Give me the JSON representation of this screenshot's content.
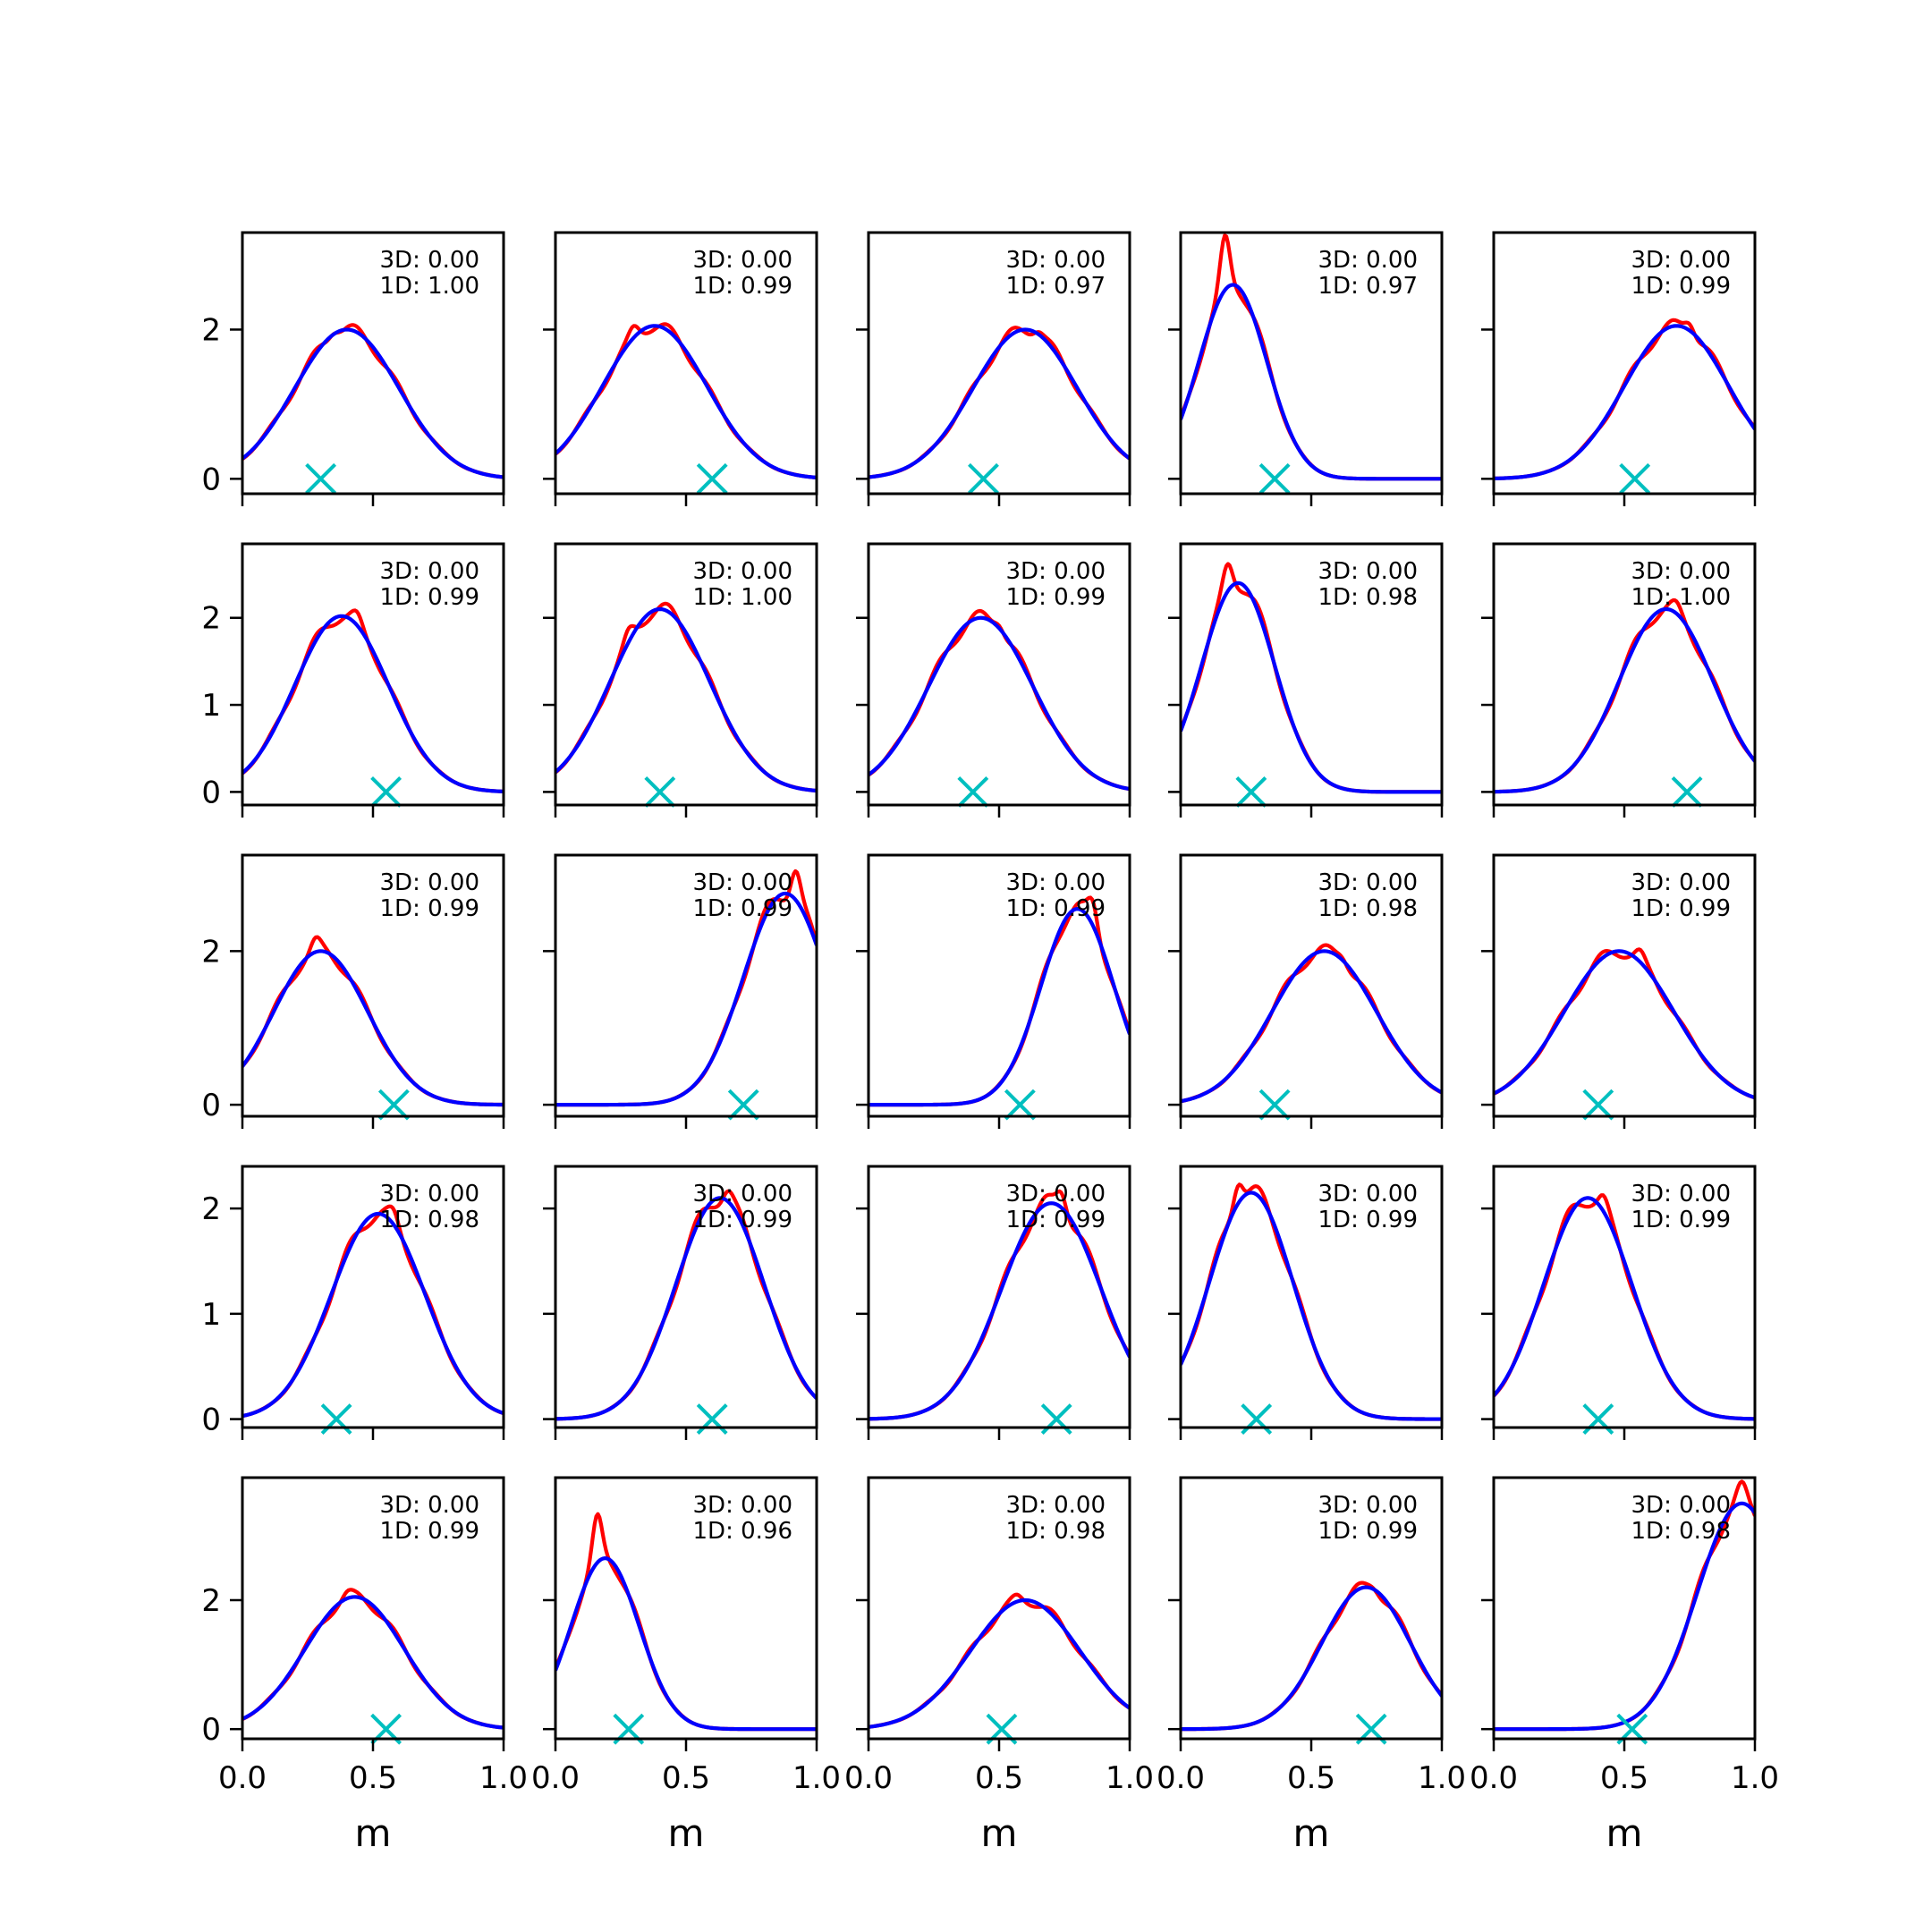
{
  "chart_data": {
    "type": "line",
    "layout": {
      "rows": 5,
      "cols": 5
    },
    "xlabel": "m",
    "xlim": [
      0,
      1
    ],
    "xticks": [
      "0.0",
      "0.5",
      "1.0"
    ],
    "colors": {
      "series_red": "#ff0000",
      "series_blue": "#0000ff",
      "marker": "#00bfbf"
    },
    "row_ylim": [
      [
        -0.2,
        3.3
      ],
      [
        -0.15,
        2.85
      ],
      [
        -0.15,
        3.25
      ],
      [
        -0.08,
        2.4
      ],
      [
        -0.15,
        3.9
      ]
    ],
    "row_yticks": [
      [
        0,
        2
      ],
      [
        0,
        1,
        2
      ],
      [
        0,
        2
      ],
      [
        0,
        1,
        2
      ],
      [
        0,
        2
      ]
    ],
    "row_ytick_labels": [
      [
        "0",
        "2"
      ],
      [
        "0",
        "1",
        "2"
      ],
      [
        "0",
        "2"
      ],
      [
        "0",
        "1",
        "2"
      ],
      [
        "0",
        "2"
      ]
    ],
    "panels": [
      {
        "text3d": "3D: 0.00",
        "text1d": "1D: 1.00",
        "marker_x": 0.3,
        "mu": 0.4,
        "sigma": 0.2,
        "peak": 2.0,
        "bump": 0.08,
        "bump_x": 0.35
      },
      {
        "text3d": "3D: 0.00",
        "text1d": "1D: 0.99",
        "marker_x": 0.6,
        "mu": 0.38,
        "sigma": 0.2,
        "peak": 2.05,
        "bump": 0.12,
        "bump_x": 0.3
      },
      {
        "text3d": "3D: 0.00",
        "text1d": "1D: 0.97",
        "marker_x": 0.44,
        "mu": 0.6,
        "sigma": 0.2,
        "peak": 2.0,
        "bump": 0.08,
        "bump_x": 0.65
      },
      {
        "text3d": "3D: 0.00",
        "text1d": "1D: 0.97",
        "marker_x": 0.36,
        "mu": 0.2,
        "sigma": 0.13,
        "peak": 2.6,
        "bump": 0.65,
        "bump_x": 0.17
      },
      {
        "text3d": "3D: 0.00",
        "text1d": "1D: 0.99",
        "marker_x": 0.54,
        "mu": 0.7,
        "sigma": 0.2,
        "peak": 2.05,
        "bump": 0.15,
        "bump_x": 0.75
      },
      {
        "text3d": "3D: 0.00",
        "text1d": "1D: 0.99",
        "marker_x": 0.55,
        "mu": 0.38,
        "sigma": 0.18,
        "peak": 2.02,
        "bump": 0.08,
        "bump_x": 0.44
      },
      {
        "text3d": "3D: 0.00",
        "text1d": "1D: 1.00",
        "marker_x": 0.4,
        "mu": 0.4,
        "sigma": 0.19,
        "peak": 2.1,
        "bump": 0.1,
        "bump_x": 0.28
      },
      {
        "text3d": "3D: 0.00",
        "text1d": "1D: 0.99",
        "marker_x": 0.4,
        "mu": 0.43,
        "sigma": 0.2,
        "peak": 2.0,
        "bump": 0.1,
        "bump_x": 0.5
      },
      {
        "text3d": "3D: 0.00",
        "text1d": "1D: 0.98",
        "marker_x": 0.27,
        "mu": 0.22,
        "sigma": 0.14,
        "peak": 2.4,
        "bump": 0.28,
        "bump_x": 0.18
      },
      {
        "text3d": "3D: 0.00",
        "text1d": "1D: 1.00",
        "marker_x": 0.74,
        "mu": 0.66,
        "sigma": 0.18,
        "peak": 2.1,
        "bump": 0.06,
        "bump_x": 0.7
      },
      {
        "text3d": "3D: 0.00",
        "text1d": "1D: 0.99",
        "marker_x": 0.58,
        "mu": 0.3,
        "sigma": 0.18,
        "peak": 2.0,
        "bump": 0.12,
        "bump_x": 0.28
      },
      {
        "text3d": "3D: 0.00",
        "text1d": "1D: 0.99",
        "marker_x": 0.72,
        "mu": 0.88,
        "sigma": 0.16,
        "peak": 2.75,
        "bump": 0.4,
        "bump_x": 0.92
      },
      {
        "text3d": "3D: 0.00",
        "text1d": "1D: 0.99",
        "marker_x": 0.58,
        "mu": 0.8,
        "sigma": 0.14,
        "peak": 2.55,
        "bump": 0.3,
        "bump_x": 0.86
      },
      {
        "text3d": "3D: 0.00",
        "text1d": "1D: 0.98",
        "marker_x": 0.36,
        "mu": 0.55,
        "sigma": 0.2,
        "peak": 2.0,
        "bump": 0.08,
        "bump_x": 0.62
      },
      {
        "text3d": "3D: 0.00",
        "text1d": "1D: 0.99",
        "marker_x": 0.4,
        "mu": 0.48,
        "sigma": 0.21,
        "peak": 2.0,
        "bump": 0.1,
        "bump_x": 0.56
      },
      {
        "text3d": "3D: 0.00",
        "text1d": "1D: 0.98",
        "marker_x": 0.36,
        "mu": 0.52,
        "sigma": 0.18,
        "peak": 1.95,
        "bump": 0.08,
        "bump_x": 0.58
      },
      {
        "text3d": "3D: 0.00",
        "text1d": "1D: 0.99",
        "marker_x": 0.6,
        "mu": 0.63,
        "sigma": 0.17,
        "peak": 2.1,
        "bump": 0.1,
        "bump_x": 0.66
      },
      {
        "text3d": "3D: 0.00",
        "text1d": "1D: 0.99",
        "marker_x": 0.72,
        "mu": 0.7,
        "sigma": 0.19,
        "peak": 2.05,
        "bump": 0.18,
        "bump_x": 0.74
      },
      {
        "text3d": "3D: 0.00",
        "text1d": "1D: 0.99",
        "marker_x": 0.29,
        "mu": 0.27,
        "sigma": 0.16,
        "peak": 2.15,
        "bump": 0.25,
        "bump_x": 0.22
      },
      {
        "text3d": "3D: 0.00",
        "text1d": "1D: 0.99",
        "marker_x": 0.4,
        "mu": 0.36,
        "sigma": 0.17,
        "peak": 2.1,
        "bump": 0.1,
        "bump_x": 0.42
      },
      {
        "text3d": "3D: 0.00",
        "text1d": "1D: 0.99",
        "marker_x": 0.55,
        "mu": 0.43,
        "sigma": 0.19,
        "peak": 2.05,
        "bump": 0.06,
        "bump_x": 0.4
      },
      {
        "text3d": "3D: 0.00",
        "text1d": "1D: 0.96",
        "marker_x": 0.28,
        "mu": 0.19,
        "sigma": 0.13,
        "peak": 2.65,
        "bump": 0.65,
        "bump_x": 0.16
      },
      {
        "text3d": "3D: 0.00",
        "text1d": "1D: 0.98",
        "marker_x": 0.51,
        "mu": 0.6,
        "sigma": 0.21,
        "peak": 2.0,
        "bump": 0.06,
        "bump_x": 0.57
      },
      {
        "text3d": "3D: 0.00",
        "text1d": "1D: 0.99",
        "marker_x": 0.73,
        "mu": 0.71,
        "sigma": 0.17,
        "peak": 2.2,
        "bump": 0.06,
        "bump_x": 0.74
      },
      {
        "text3d": "3D: 0.00",
        "text1d": "1D: 0.98",
        "marker_x": 0.53,
        "mu": 0.95,
        "sigma": 0.17,
        "peak": 3.5,
        "bump": 0.2,
        "bump_x": 0.95
      }
    ]
  }
}
